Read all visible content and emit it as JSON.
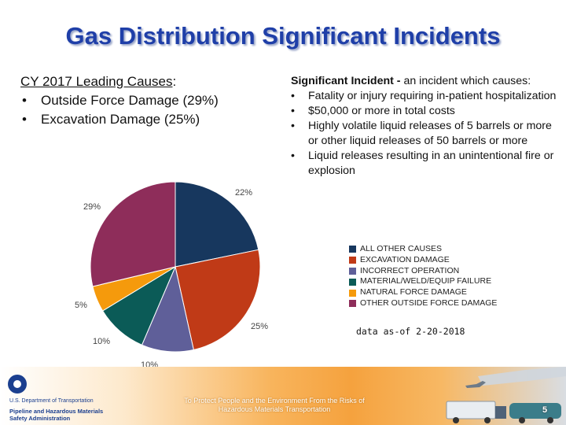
{
  "title": "Gas Distribution Significant Incidents",
  "left_panel": {
    "heading_underlined": "CY 2017 Leading Causes",
    "heading_suffix": ":",
    "bullets": [
      "Outside Force Damage (29%)",
      "Excavation Damage (25%)"
    ]
  },
  "definition": {
    "term": "Significant Incident -",
    "description": " an incident which causes:",
    "bullets": [
      "Fatality or injury requiring in-patient hospitalization",
      "$50,000 or more in total costs",
      "Highly volatile liquid releases of 5 barrels or more or other liquid releases of 50 barrels or more",
      "Liquid releases resulting in an unintentional fire or explosion"
    ]
  },
  "chart_data": {
    "type": "pie",
    "title": "",
    "start_angle_deg": 0,
    "direction": "clockwise",
    "legend_position": "right",
    "slices": [
      {
        "name": "ALL OTHER CAUSES",
        "value": 22,
        "label": "22%",
        "color": "#17375e"
      },
      {
        "name": "EXCAVATION DAMAGE",
        "value": 25,
        "label": "25%",
        "color": "#c03a17"
      },
      {
        "name": "INCORRECT OPERATION",
        "value": 10,
        "label": "10%",
        "color": "#5f5f99"
      },
      {
        "name": "MATERIAL/WELD/EQUIP FAILURE",
        "value": 10,
        "label": "10%",
        "color": "#0b5b57"
      },
      {
        "name": "NATURAL FORCE DAMAGE",
        "value": 5,
        "label": "5%",
        "color": "#f59a0c"
      },
      {
        "name": "OTHER OUTSIDE FORCE DAMAGE",
        "value": 29,
        "label": "29%",
        "color": "#8e2d5a"
      }
    ]
  },
  "data_note": "data as-of 2-20-2018",
  "footer": {
    "agency_line1": "U.S. Department of Transportation",
    "agency_line2": "Pipeline and Hazardous Materials",
    "agency_line3": "Safety Administration",
    "mission_line1": "To Protect People and the Environment From the Risks of",
    "mission_line2": "Hazardous Materials Transportation",
    "page_number": "5"
  }
}
